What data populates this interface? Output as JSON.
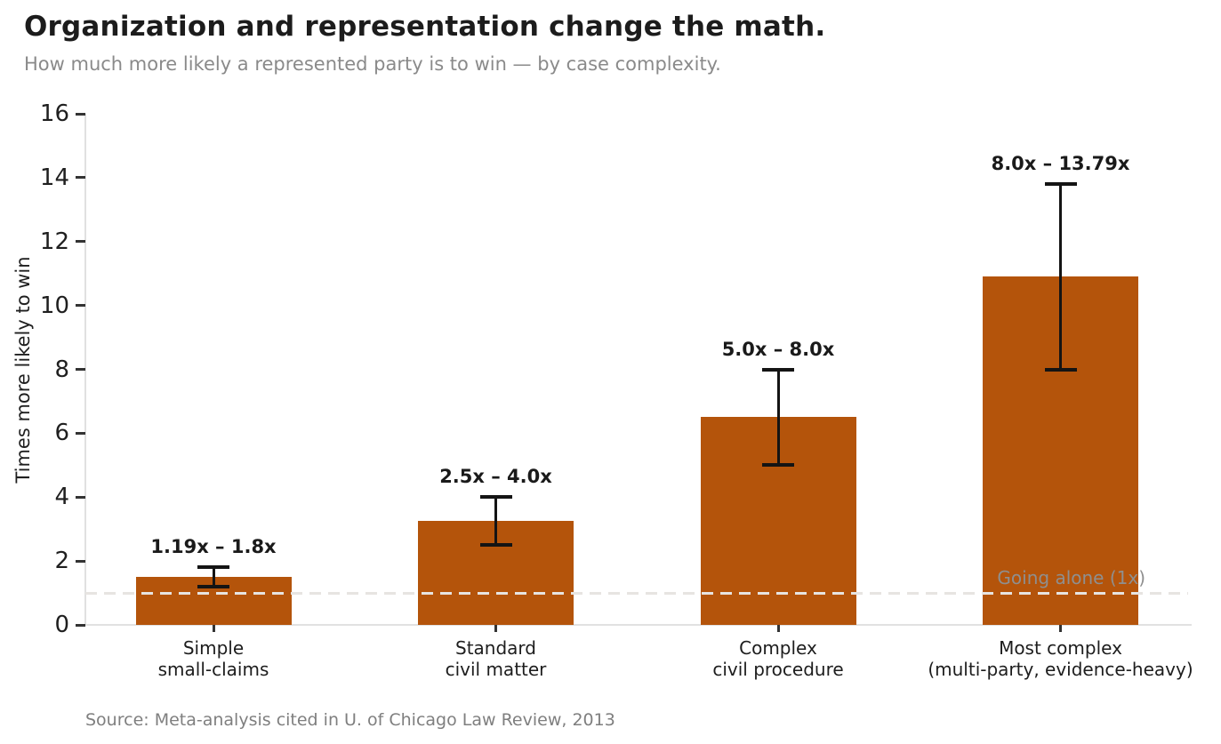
{
  "chart_data": {
    "type": "bar",
    "title": "Organization and representation change the math.",
    "subtitle": "How much more likely a represented party is to win — by case complexity.",
    "ylabel": "Times more likely to win",
    "xlabel": "",
    "ylim": [
      0,
      16
    ],
    "yticks": [
      0,
      2,
      4,
      6,
      8,
      10,
      12,
      14,
      16
    ],
    "grid": false,
    "legend": "none",
    "categories": [
      [
        "Simple",
        "small-claims"
      ],
      [
        "Standard",
        "civil matter"
      ],
      [
        "Complex",
        "civil procedure"
      ],
      [
        "Most complex",
        "(multi-party, evidence-heavy)"
      ]
    ],
    "values": [
      1.495,
      3.25,
      6.5,
      10.895
    ],
    "error_bars": {
      "low": [
        1.19,
        2.5,
        5.0,
        8.0
      ],
      "high": [
        1.8,
        4.0,
        8.0,
        13.79
      ]
    },
    "range_labels": [
      "1.19x – 1.8x",
      "2.5x – 4.0x",
      "5.0x – 8.0x",
      "8.0x – 13.79x"
    ],
    "baseline": {
      "value": 1,
      "label": "Going alone (1x)"
    },
    "source": "Source: Meta-analysis cited in U. of Chicago Law Review, 2013",
    "colors": {
      "bar": "#b4540b",
      "error": "#141414",
      "baseline_line": "#e7e4e1",
      "annotation_text": "#8f8f8f",
      "title_text": "#1c1c1c",
      "subtitle_text": "#8a8a8a",
      "axis_spine": "#e1e1e1",
      "tick_mark": "#333333",
      "tick_text": "#1f1f1f",
      "source_text": "#7f7f7f"
    }
  }
}
